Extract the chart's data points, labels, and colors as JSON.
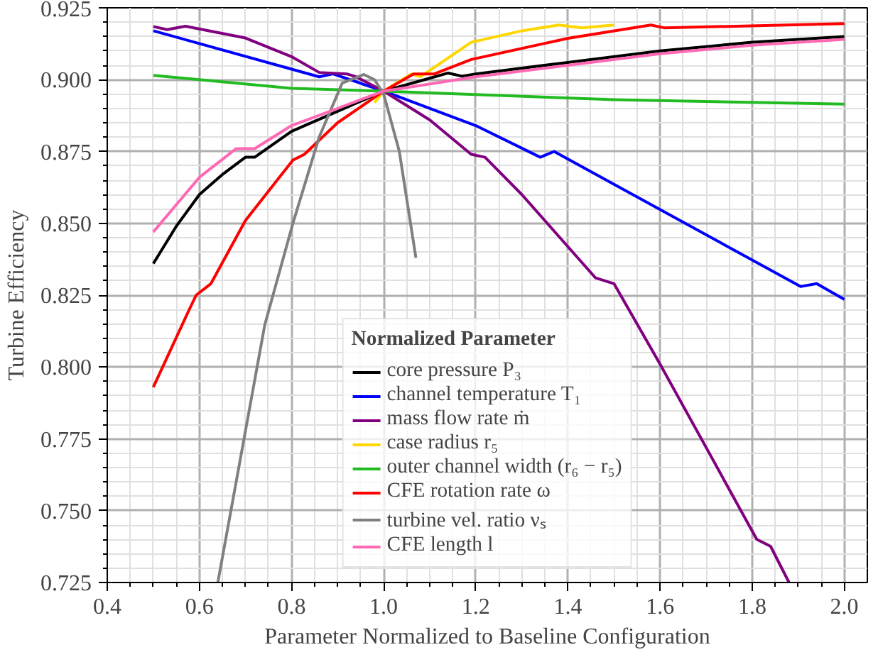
{
  "chart_data": {
    "type": "line",
    "xlabel": "Parameter Normalized to Baseline Configuration",
    "ylabel": "Turbine Efficiency",
    "legend_title": "Normalized Parameter",
    "xlim": [
      0.4,
      2.05
    ],
    "ylim": [
      0.725,
      0.925
    ],
    "xticks": [
      {
        "value": 0.4,
        "label": "0.4"
      },
      {
        "value": 0.6,
        "label": "0.6"
      },
      {
        "value": 0.8,
        "label": "0.8"
      },
      {
        "value": 1.0,
        "label": "1.0"
      },
      {
        "value": 1.2,
        "label": "1.2"
      },
      {
        "value": 1.4,
        "label": "1.4"
      },
      {
        "value": 1.6,
        "label": "1.6"
      },
      {
        "value": 1.8,
        "label": "1.8"
      },
      {
        "value": 2.0,
        "label": "2.0"
      }
    ],
    "yticks": [
      {
        "value": 0.725,
        "label": "0.725"
      },
      {
        "value": 0.75,
        "label": "0.750"
      },
      {
        "value": 0.775,
        "label": "0.775"
      },
      {
        "value": 0.8,
        "label": "0.800"
      },
      {
        "value": 0.825,
        "label": "0.825"
      },
      {
        "value": 0.85,
        "label": "0.850"
      },
      {
        "value": 0.875,
        "label": "0.875"
      },
      {
        "value": 0.9,
        "label": "0.900"
      },
      {
        "value": 0.925,
        "label": "0.925"
      }
    ],
    "grid": true,
    "legend": "bottom",
    "line_style": "solid",
    "series": [
      {
        "name": "core pressure P₃",
        "color": "#000000",
        "x": [
          0.5,
          0.55,
          0.6,
          0.65,
          0.7,
          0.72,
          0.8,
          0.9,
          1.0,
          1.1,
          1.14,
          1.17,
          1.2,
          1.4,
          1.6,
          1.8,
          2.0
        ],
        "values": [
          0.836,
          0.849,
          0.86,
          0.867,
          0.873,
          0.873,
          0.882,
          0.889,
          0.896,
          0.9005,
          0.9023,
          0.9012,
          0.902,
          0.906,
          0.91,
          0.913,
          0.915
        ]
      },
      {
        "name": "channel temperature T₁",
        "color": "#0000ff",
        "x": [
          0.5,
          0.86,
          0.89,
          1.0,
          1.2,
          1.34,
          1.37,
          1.905,
          1.94,
          2.0
        ],
        "values": [
          0.917,
          0.901,
          0.902,
          0.896,
          0.884,
          0.873,
          0.875,
          0.828,
          0.829,
          0.8235
        ]
      },
      {
        "name": "mass flow rate ṁ",
        "color": "#800080",
        "x": [
          0.5,
          0.53,
          0.57,
          0.7,
          0.8,
          0.86,
          0.92,
          0.94,
          1.0,
          1.1,
          1.19,
          1.22,
          1.3,
          1.46,
          1.5,
          1.6,
          1.7,
          1.81,
          1.84,
          1.88
        ],
        "values": [
          0.9185,
          0.9174,
          0.9186,
          0.9145,
          0.908,
          0.9025,
          0.902,
          0.901,
          0.896,
          0.886,
          0.874,
          0.873,
          0.86,
          0.831,
          0.829,
          0.801,
          0.772,
          0.74,
          0.7376,
          0.725
        ]
      },
      {
        "name": "case radius r₅",
        "color": "#ffd700",
        "x": [
          0.98,
          1.0,
          1.06,
          1.08,
          1.19,
          1.3,
          1.38,
          1.43,
          1.5
        ],
        "values": [
          0.892,
          0.896,
          0.902,
          0.901,
          0.913,
          0.917,
          0.919,
          0.918,
          0.919
        ]
      },
      {
        "name": "outer channel width (r₆ − r₅)",
        "color": "#22bb22",
        "x": [
          0.5,
          0.8,
          1.0,
          1.5,
          2.0
        ],
        "values": [
          0.9015,
          0.897,
          0.896,
          0.893,
          0.8915
        ]
      },
      {
        "name": "CFE rotation rate ω",
        "color": "#ff0000",
        "x": [
          0.5,
          0.578,
          0.593,
          0.625,
          0.7,
          0.803,
          0.828,
          0.9,
          1.0,
          1.065,
          1.11,
          1.19,
          1.4,
          1.58,
          1.61,
          2.0
        ],
        "values": [
          0.793,
          0.82,
          0.825,
          0.829,
          0.851,
          0.872,
          0.874,
          0.885,
          0.896,
          0.902,
          0.902,
          0.907,
          0.9144,
          0.919,
          0.918,
          0.9195
        ]
      },
      {
        "name": "turbine vel. ratio νₛ",
        "color": "#808080",
        "x": [
          0.64,
          0.742,
          0.803,
          0.86,
          0.91,
          0.957,
          0.98,
          1.0,
          1.034,
          1.07
        ],
        "values": [
          0.725,
          0.8147,
          0.85,
          0.88,
          0.8988,
          0.9018,
          0.9,
          0.895,
          0.875,
          0.838
        ]
      },
      {
        "name": "CFE length l",
        "color": "#ff69b4",
        "x": [
          0.5,
          0.6,
          0.68,
          0.72,
          0.8,
          0.9,
          1.0,
          1.2,
          1.4,
          1.6,
          1.8,
          2.0
        ],
        "values": [
          0.847,
          0.866,
          0.876,
          0.876,
          0.884,
          0.89,
          0.896,
          0.901,
          0.905,
          0.909,
          0.912,
          0.914
        ]
      }
    ]
  }
}
